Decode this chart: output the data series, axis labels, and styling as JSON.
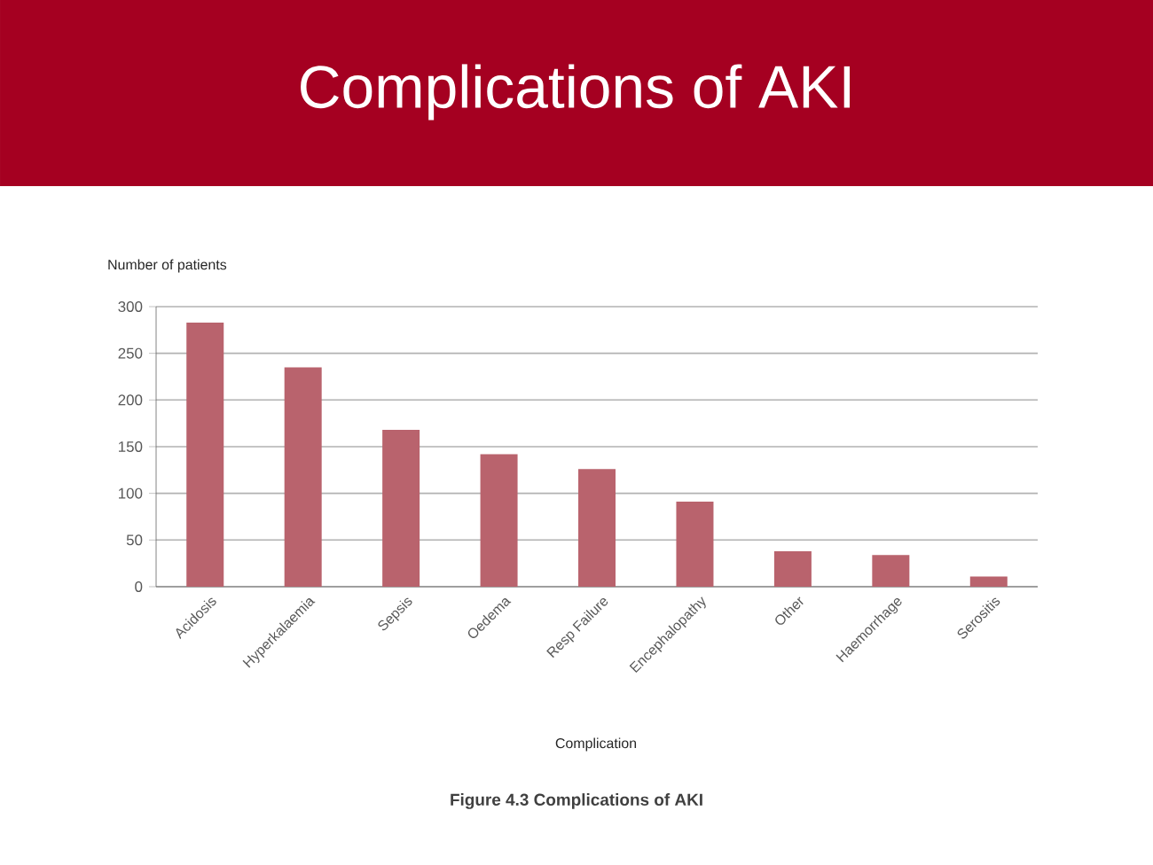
{
  "chart_data": {
    "type": "bar",
    "title": "Complications of AKI",
    "xlabel": "Complication",
    "ylabel": "Number of patients",
    "categories": [
      "Acidosis",
      "Hyperkalaemia",
      "Sepsis",
      "Oedema",
      "Resp Failure",
      "Encephalopathy",
      "Other",
      "Haemorrhage",
      "Serositis"
    ],
    "values": [
      283,
      235,
      168,
      142,
      126,
      91,
      38,
      34,
      11
    ],
    "color": "#b9636d",
    "ylim": [
      0,
      300
    ],
    "yticks": [
      0,
      50,
      100,
      150,
      200,
      250,
      300
    ],
    "grid": "y",
    "annotations": [
      "**Figure 4.3 Complications of AKI**"
    ]
  }
}
